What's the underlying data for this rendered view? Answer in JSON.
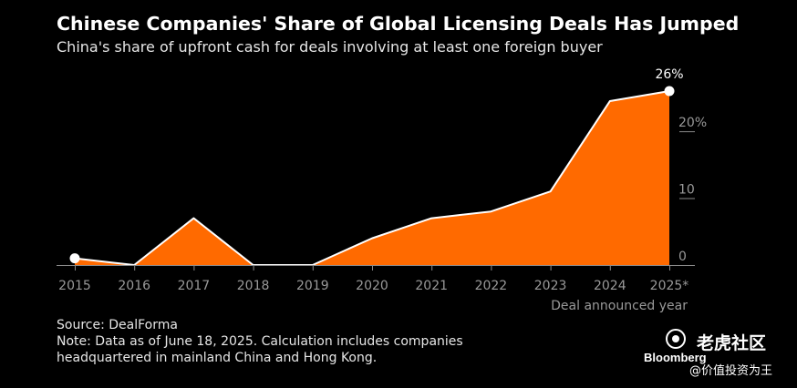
{
  "chart_data": {
    "type": "area",
    "title": "Chinese Companies' Share of Global Licensing Deals Has Jumped",
    "subtitle": "China's share of upfront cash for deals involving at least one foreign buyer",
    "xlabel": "Deal announced year",
    "ylabel": "",
    "categories": [
      "2015",
      "2016",
      "2017",
      "2018",
      "2019",
      "2020",
      "2021",
      "2022",
      "2023",
      "2024",
      "2025*"
    ],
    "values": [
      1,
      0,
      7,
      0,
      0,
      4,
      7,
      8,
      11,
      24.5,
      26
    ],
    "ylim": [
      0,
      26
    ],
    "yticks": [
      0,
      10,
      20
    ],
    "ytick_labels": [
      "0",
      "10",
      "20%"
    ],
    "annotations": [
      {
        "category": "2025*",
        "label": "26%"
      }
    ],
    "grid": false,
    "colors": {
      "fill": "#ff6a00",
      "line": "#ffffff",
      "background": "#000000",
      "axis_text": "#999999"
    }
  },
  "footer": {
    "source": "Source: DealForma",
    "note_line1": "Note: Data as of June 18, 2025. Calculation includes companies",
    "note_line2": "headquartered in mainland China and Hong Kong."
  },
  "brand": "Bloomberg",
  "watermark": {
    "name": "老虎社区",
    "handle": "@价值投资为王"
  }
}
